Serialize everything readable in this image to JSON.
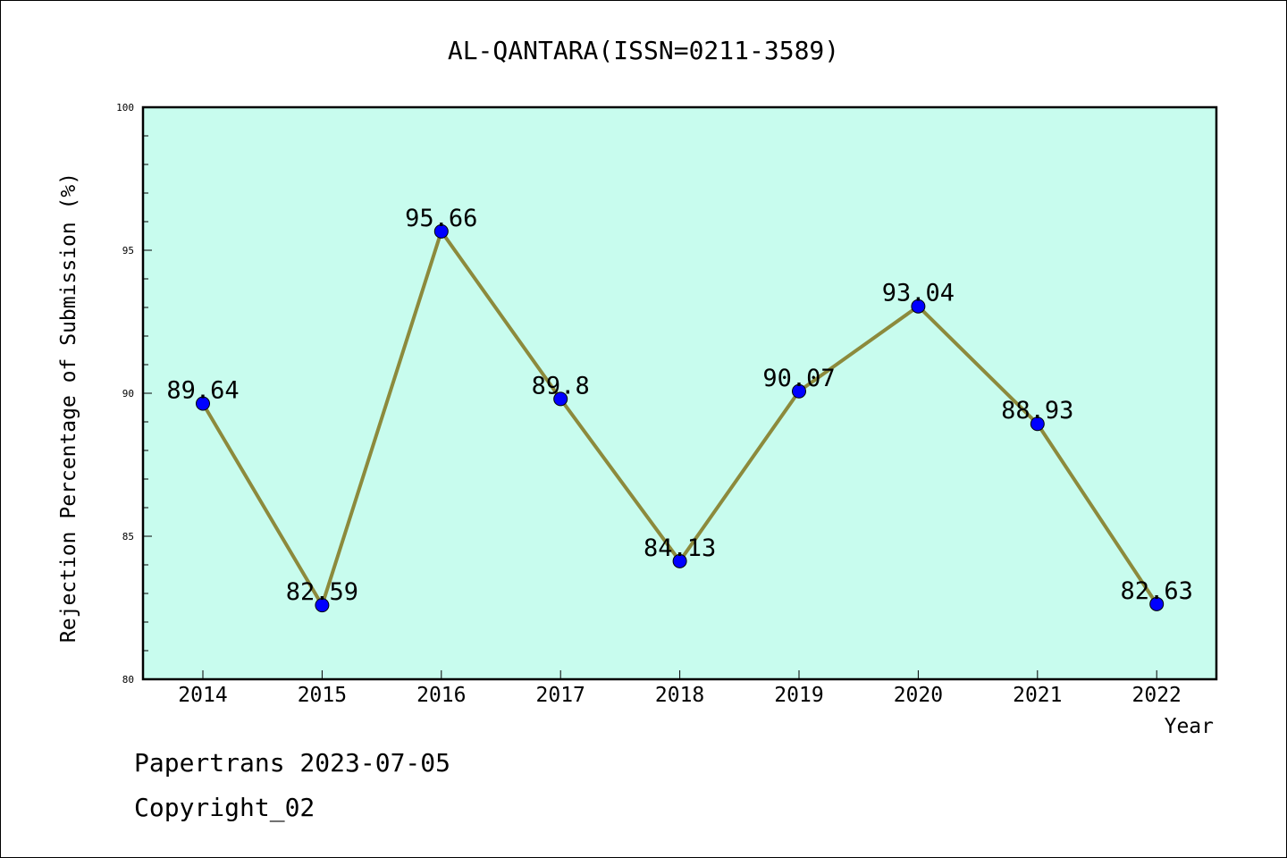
{
  "chart_data": {
    "type": "line",
    "title": "AL-QANTARA(ISSN=0211-3589)",
    "xlabel": "Year",
    "ylabel": "Rejection Percentage of Submission (%)",
    "categories": [
      "2014",
      "2015",
      "2016",
      "2017",
      "2018",
      "2019",
      "2020",
      "2021",
      "2022"
    ],
    "values": [
      89.64,
      82.59,
      95.66,
      89.8,
      84.13,
      90.07,
      93.04,
      88.93,
      82.63
    ],
    "value_labels": [
      "89.64",
      "82.59",
      "95.66",
      "89.8",
      "84.13",
      "90.07",
      "93.04",
      "88.93",
      "82.63"
    ],
    "ylim": [
      80,
      100
    ],
    "y_ticks": [
      "80",
      "85",
      "90",
      "95",
      "100"
    ],
    "grid": false,
    "colors": {
      "plot_background": "#c8fcee",
      "line": "#8c8a3c",
      "marker": "#0000ff"
    }
  },
  "footer": {
    "credit": "Papertrans 2023-07-05",
    "copyright": "Copyright_02"
  }
}
